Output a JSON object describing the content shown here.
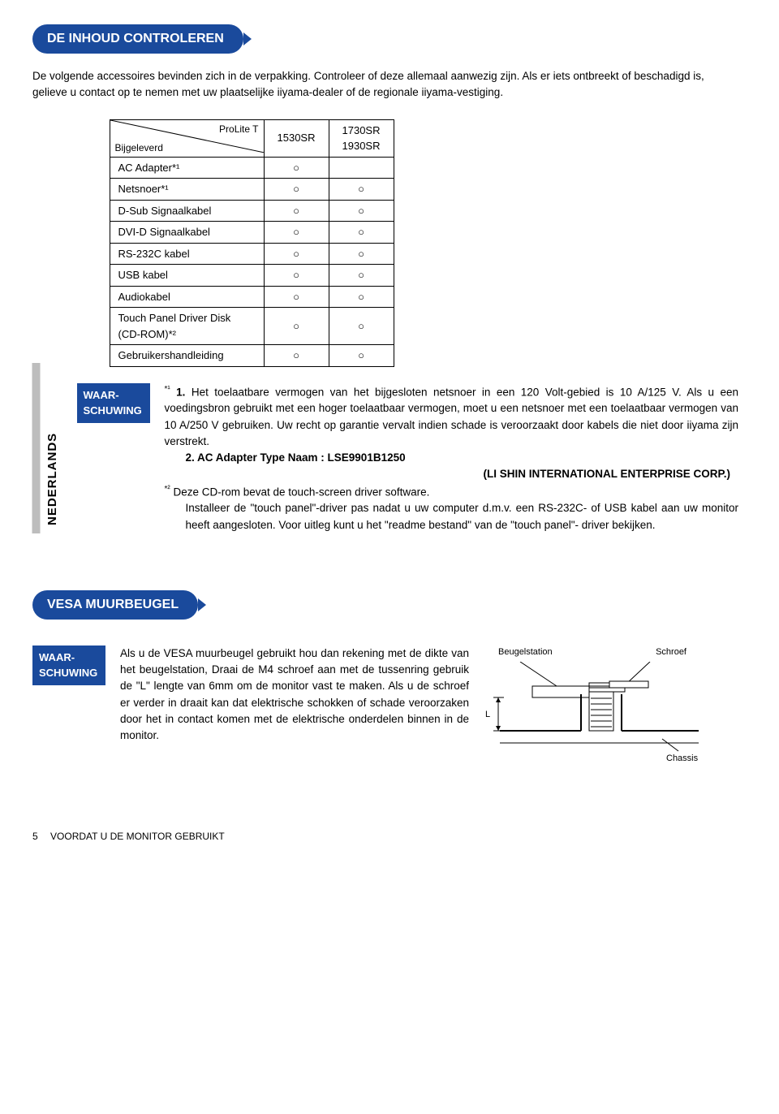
{
  "section1": {
    "title": "DE INHOUD CONTROLEREN",
    "intro": "De volgende accessoires bevinden zich in de verpakking. Controleer of deze allemaal aanwezig zijn. Als er iets ontbreekt of beschadigd is, gelieve u contact op te nemen met uw plaatselijke iiyama-dealer of de regionale iiyama-vestiging."
  },
  "sideTab": "NEDERLANDS",
  "table": {
    "hdr_top": "ProLite T",
    "hdr_bot": "Bijgeleverd",
    "col1": "1530SR",
    "col2a": "1730SR",
    "col2b": "1930SR",
    "rows": [
      {
        "label": "AC Adapter*¹",
        "c1": "○",
        "c2": ""
      },
      {
        "label": "Netsnoer*¹",
        "c1": "○",
        "c2": "○"
      },
      {
        "label": "D-Sub Signaalkabel",
        "c1": "○",
        "c2": "○"
      },
      {
        "label": "DVI-D Signaalkabel",
        "c1": "○",
        "c2": "○"
      },
      {
        "label": "RS-232C kabel",
        "c1": "○",
        "c2": "○"
      },
      {
        "label": "USB kabel",
        "c1": "○",
        "c2": "○"
      },
      {
        "label": "Audiokabel",
        "c1": "○",
        "c2": "○"
      },
      {
        "label": "Touch Panel Driver Disk (CD-ROM)*²",
        "c1": "○",
        "c2": "○"
      },
      {
        "label": "Gebruikershandleiding",
        "c1": "○",
        "c2": "○"
      }
    ]
  },
  "warn": {
    "label1": "WAAR-",
    "label2": "SCHUWING",
    "n1_marker": "*¹",
    "n1_bold": "1.",
    "n1_text": " Het toelaatbare vermogen van het bijgesloten netsnoer in een 120 Volt-gebied is 10 A/125 V. Als u een voedingsbron gebruikt met een hoger toelaatbaar vermogen, moet u een netsnoer met een toelaatbaar vermogen van 10 A/250 V gebruiken. Uw recht op garantie vervalt indien schade is veroorzaakt door kabels die niet door iiyama zijn verstrekt.",
    "n2_bold": "2. AC Adapter  Type Naam : LSE9901B1250",
    "n2_sub": "(LI SHIN INTERNATIONAL ENTERPRISE CORP.)",
    "n3_marker": "*²",
    "n3_text": " Deze CD-rom bevat de touch-screen driver software.",
    "n3_p2": "Installeer de \"touch panel\"-driver pas nadat u uw computer d.m.v. een RS-232C- of USB kabel  aan uw monitor heeft aangesloten. Voor uitleg kunt u het \"readme bestand\" van de \"touch panel\"- driver  bekijken."
  },
  "section2": {
    "title": "VESA MUURBEUGEL",
    "text": "Als u de VESA muurbeugel gebruikt hou dan rekening met de dikte van het beugelstation, Draai de M4 schroef aan met de tussenring gebruik de \"L\" lengte van 6mm om de monitor vast te maken. Als u de schroef er verder in draait kan dat elektrische schokken of schade veroorzaken door het in contact komen met de elektrische onderdelen binnen in de monitor.",
    "lbl_station": "Beugelstation",
    "lbl_screw": "Schroef",
    "lbl_L": "L",
    "lbl_chassis": "Chassis"
  },
  "footer": {
    "num": "5",
    "text": "VOORDAT U DE MONITOR GEBRUIKT"
  }
}
